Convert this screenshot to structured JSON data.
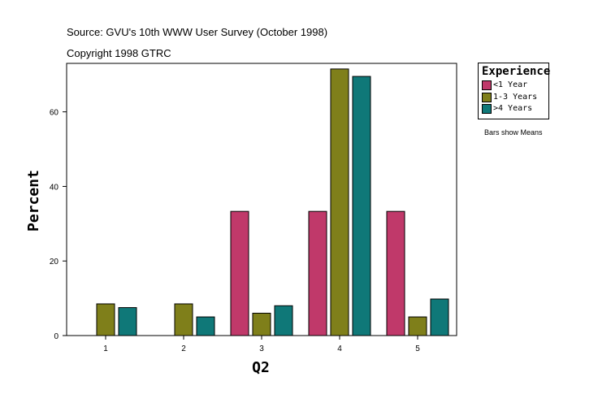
{
  "header": {
    "source": "Source: GVU's 10th WWW User Survey (October 1998)",
    "copyright": "Copyright 1998 GTRC"
  },
  "legend": {
    "title": "Experience",
    "items": [
      {
        "label": "<1 Year",
        "color": "#c0396a"
      },
      {
        "label": "1-3 Years",
        "color": "#7f7f1a"
      },
      {
        "label": ">4 Years",
        "color": "#0f7878"
      }
    ]
  },
  "note": "Bars show Means",
  "chart_data": {
    "type": "bar",
    "title": "",
    "xlabel": "Q2",
    "ylabel": "Percent",
    "categories": [
      "1",
      "2",
      "3",
      "4",
      "5"
    ],
    "ylim": [
      0,
      73
    ],
    "yticks": [
      0,
      20,
      40,
      60
    ],
    "series": [
      {
        "name": "<1 Year",
        "color": "#c0396a",
        "values": [
          0,
          0,
          33.3,
          33.3,
          33.3
        ]
      },
      {
        "name": "1-3 Years",
        "color": "#7f7f1a",
        "values": [
          8.5,
          8.5,
          6.0,
          71.5,
          5.0
        ]
      },
      {
        "name": ">4 Years",
        "color": "#0f7878",
        "values": [
          7.5,
          5.0,
          8.0,
          69.5,
          9.8
        ]
      }
    ]
  }
}
